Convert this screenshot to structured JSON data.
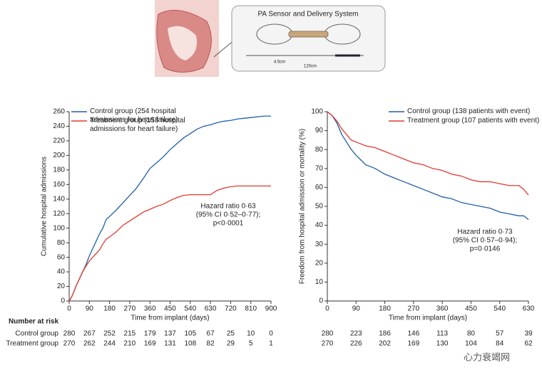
{
  "illustration": {
    "title": "PA Sensor and Delivery System",
    "length_short": "4.5cm",
    "length_long": "120cm"
  },
  "chart_data": [
    {
      "type": "line",
      "xlabel": "Time from implant (days)",
      "ylabel": "Cumulative hospital admissions",
      "x": [
        0,
        10,
        20,
        30,
        45,
        60,
        75,
        90,
        105,
        120,
        135,
        150,
        165,
        180,
        210,
        240,
        270,
        300,
        330,
        360,
        390,
        420,
        450,
        480,
        510,
        540,
        570,
        600,
        630,
        660,
        690,
        720,
        750,
        780,
        810,
        840,
        870,
        900
      ],
      "series": [
        {
          "name": "Control group (254 hospital admissions for heart failure)",
          "color": "#1f5fa8",
          "values": [
            0,
            5,
            12,
            20,
            30,
            40,
            50,
            62,
            72,
            82,
            92,
            100,
            112,
            116,
            125,
            135,
            145,
            155,
            168,
            182,
            190,
            198,
            208,
            216,
            224,
            230,
            236,
            240,
            242,
            245,
            247,
            248,
            250,
            251,
            252,
            253,
            254,
            254
          ]
        },
        {
          "name": "Treatment group (158 hospital admissions for heart failure)",
          "color": "#e03a2f",
          "values": [
            0,
            5,
            12,
            20,
            30,
            40,
            48,
            55,
            60,
            65,
            70,
            78,
            85,
            88,
            95,
            104,
            110,
            116,
            122,
            126,
            130,
            133,
            138,
            142,
            145,
            146,
            146,
            146,
            146,
            152,
            155,
            157,
            158,
            158,
            158,
            158,
            158,
            158
          ]
        }
      ],
      "xlim": [
        0,
        900
      ],
      "xticks": [
        0,
        90,
        180,
        270,
        360,
        450,
        540,
        630,
        720,
        810,
        900
      ],
      "ylim": [
        0,
        260
      ],
      "yticks": [
        0,
        20,
        40,
        60,
        80,
        100,
        120,
        140,
        160,
        180,
        200,
        220,
        240,
        260
      ],
      "annotation": [
        "Hazard ratio 0·63",
        "(95% CI 0·52–0·77);",
        "p<0·0001"
      ]
    },
    {
      "type": "line",
      "xlabel": "Time from implant (days)",
      "ylabel": "Freedom from hospital admission or mortality (%)",
      "x": [
        0,
        15,
        30,
        45,
        60,
        75,
        90,
        120,
        150,
        180,
        210,
        240,
        270,
        300,
        330,
        360,
        390,
        420,
        450,
        480,
        510,
        540,
        570,
        600,
        615,
        630
      ],
      "series": [
        {
          "name": "Control group (138 patients with event)",
          "color": "#1f5fa8",
          "values": [
            100,
            98,
            94,
            88,
            84,
            80,
            77,
            72,
            70,
            67,
            65,
            63,
            61,
            59,
            57,
            55,
            54,
            52,
            51,
            50,
            49,
            47,
            46,
            45,
            45,
            43
          ]
        },
        {
          "name": "Treatment group (107 patients with event)",
          "color": "#e03a2f",
          "values": [
            100,
            98,
            95,
            91,
            88,
            85,
            84,
            82,
            81,
            79,
            77,
            75,
            73,
            72,
            70,
            69,
            67,
            66,
            64,
            63,
            63,
            62,
            61,
            61,
            59,
            56
          ]
        }
      ],
      "xlim": [
        0,
        630
      ],
      "xticks": [
        0,
        90,
        180,
        270,
        360,
        450,
        540,
        630
      ],
      "ylim": [
        0,
        100
      ],
      "yticks": [
        0,
        10,
        20,
        30,
        40,
        50,
        60,
        70,
        80,
        90,
        100
      ],
      "annotation": [
        "Hazard ratio 0·73",
        "(95% CI 0·57–0·94);",
        "p=0·0146"
      ]
    }
  ],
  "number_at_risk": {
    "title": "Number at risk",
    "groups": [
      "Control group",
      "Treatment group"
    ],
    "left": [
      [
        280,
        267,
        252,
        215,
        179,
        137,
        105,
        67,
        25,
        10,
        0
      ],
      [
        270,
        262,
        244,
        210,
        169,
        131,
        108,
        82,
        29,
        5,
        1
      ]
    ],
    "right": [
      [
        280,
        223,
        186,
        146,
        113,
        80,
        57,
        39
      ],
      [
        270,
        226,
        202,
        169,
        130,
        104,
        84,
        62
      ]
    ]
  },
  "watermark": "心力衰竭网"
}
